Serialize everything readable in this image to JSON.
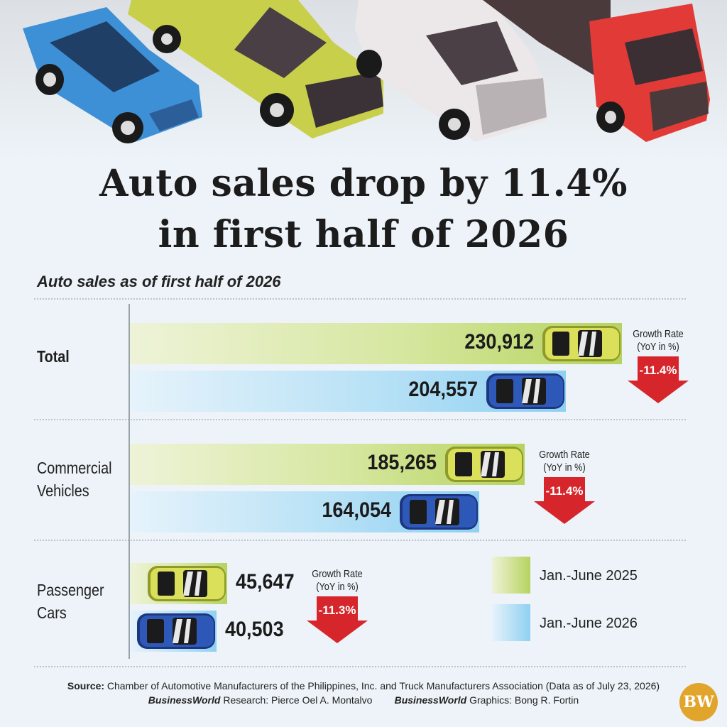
{
  "title_line1": "Auto sales drop by 11.4%",
  "title_line2": "in first half of 2026",
  "subtitle": "Auto sales as of first half of 2026",
  "growth_label_line1": "Growth Rate",
  "growth_label_line2": "(YoY in %)",
  "legend": [
    {
      "label": "Jan.-June 2025",
      "color": "#b6d35e"
    },
    {
      "label": "Jan.-June 2026",
      "color": "#8fd0f2"
    }
  ],
  "source_label": "Source:",
  "source_text": "Chamber of Automotive Manufacturers of the Philippines, Inc. and Truck Manufacturers Association (Data as of July 23, 2026)",
  "research_brand": "BusinessWorld",
  "research_text": "Research:  Pierce Oel A. Montalvo",
  "graphics_brand": "BusinessWorld",
  "graphics_text": "Graphics: Bong R. Fortin",
  "logo_text": "BW",
  "colors": {
    "bar_2025": "#b6d35e",
    "bar_2026": "#8fd0f2",
    "arrow": "#d6262b",
    "car_2025": "#dbe05a",
    "car_2026": "#2f59b8"
  },
  "chart_data": {
    "type": "bar",
    "orientation": "horizontal",
    "title": "Auto sales drop by 11.4% in first half of 2026",
    "subtitle": "Auto sales as of first half of 2026",
    "categories": [
      "Total",
      "Commercial Vehicles",
      "Passenger Cars"
    ],
    "series": [
      {
        "name": "Jan.-June 2025",
        "values": [
          230912,
          185265,
          45647
        ],
        "labels": [
          "230,912",
          "185,265",
          "45,647"
        ]
      },
      {
        "name": "Jan.-June 2026",
        "values": [
          204557,
          164054,
          40503
        ],
        "labels": [
          "204,557",
          "164,054",
          "40,503"
        ]
      }
    ],
    "growth_rate": [
      "-11.4%",
      "-11.4%",
      "-11.3%"
    ],
    "xlim": [
      0,
      230912
    ],
    "grid": false,
    "legend_position": "bottom-right"
  }
}
